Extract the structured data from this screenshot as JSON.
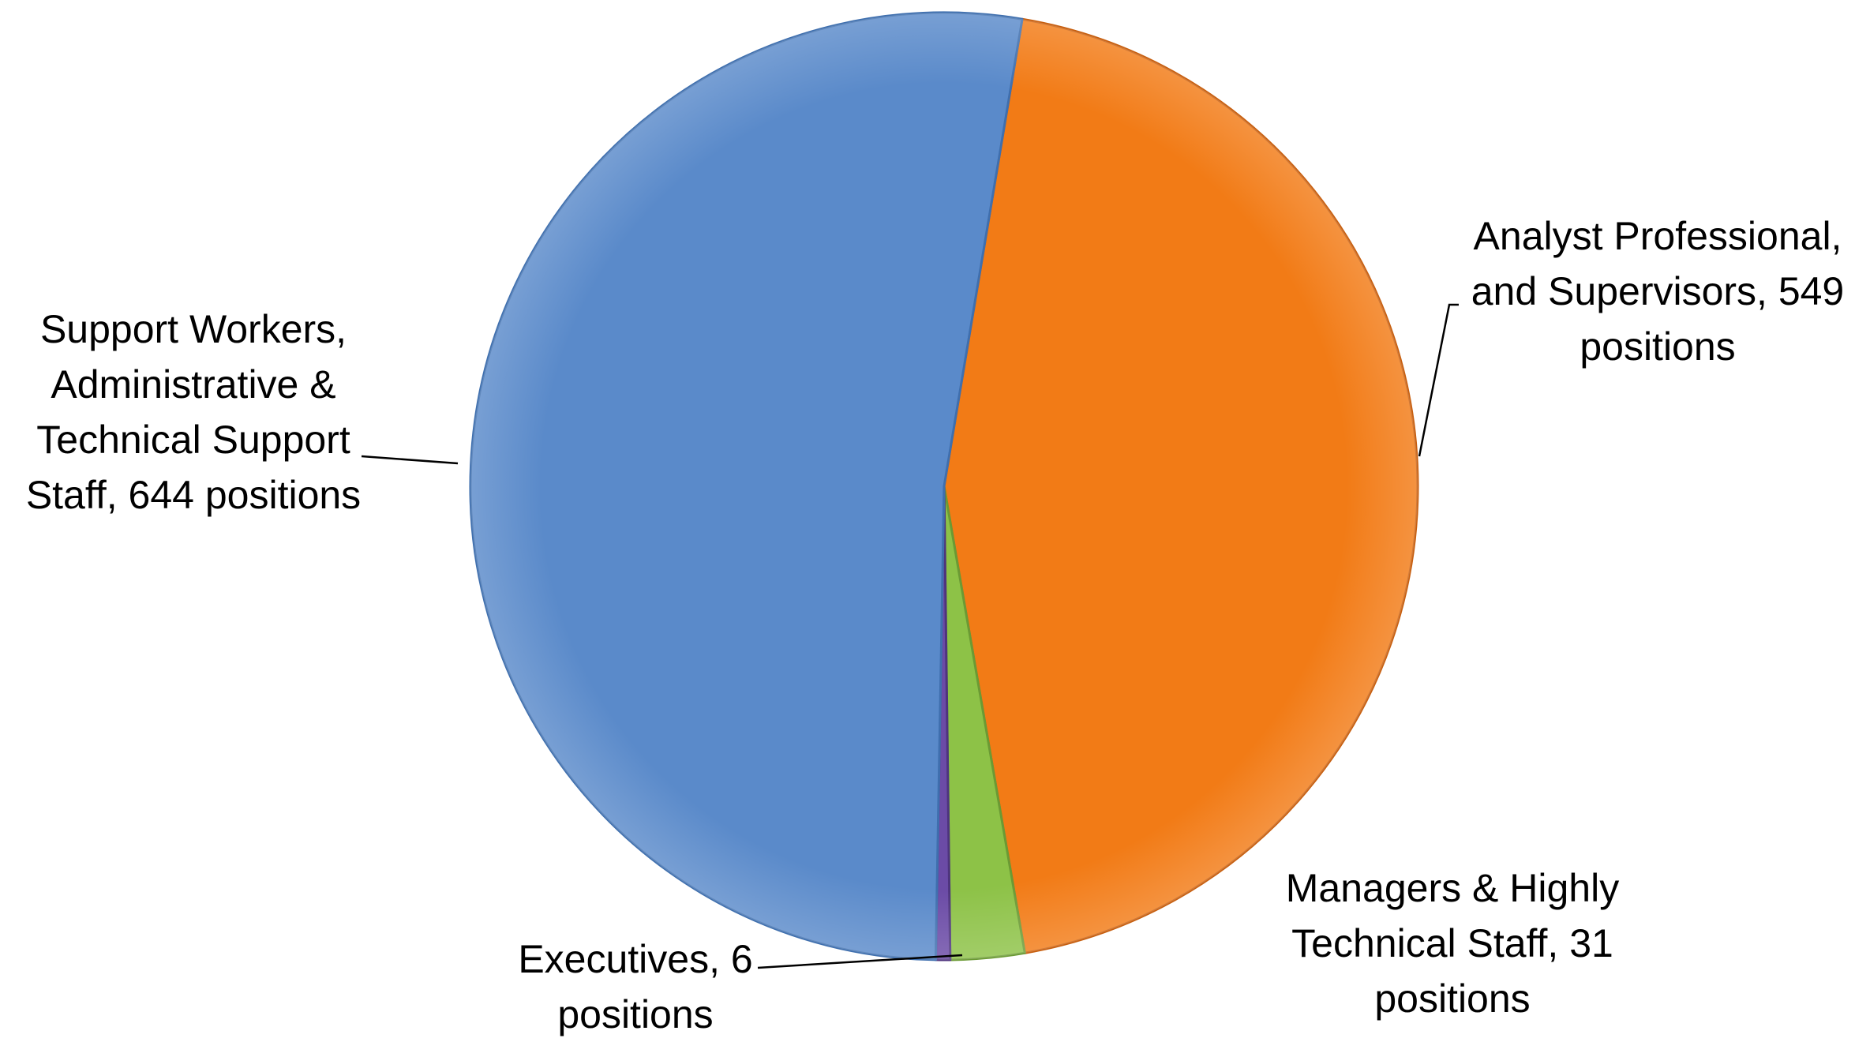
{
  "chart_data": {
    "type": "pie",
    "title": "",
    "unit": "positions",
    "start_angle_deg": 9.5,
    "direction": "clockwise",
    "legend": "none",
    "slices": [
      {
        "name": "Analyst Professional, and Supervisors",
        "value": 549,
        "color": "#F27B16",
        "edge_color": "#C75E0E",
        "label_lines": [
          "Analyst Professional,",
          "and Supervisors, 549",
          "positions"
        ]
      },
      {
        "name": "Managers & Highly Technical Staff",
        "value": 31,
        "color": "#8DC247",
        "edge_color": "#6B9A34",
        "label_lines": [
          "Managers & Highly",
          "Technical Staff, 31",
          "positions"
        ]
      },
      {
        "name": "Executives",
        "value": 6,
        "color": "#6B4BA6",
        "edge_color": "#4E347E",
        "label_lines": [
          "Executives, 6",
          "positions"
        ]
      },
      {
        "name": "Support Workers, Administrative & Technical Support Staff",
        "value": 644,
        "color": "#5A8ACA",
        "edge_color": "#3F6FAE",
        "label_lines": [
          "Support Workers,",
          "Administrative &",
          "Technical Support",
          "Staff, 644 positions"
        ]
      }
    ]
  }
}
